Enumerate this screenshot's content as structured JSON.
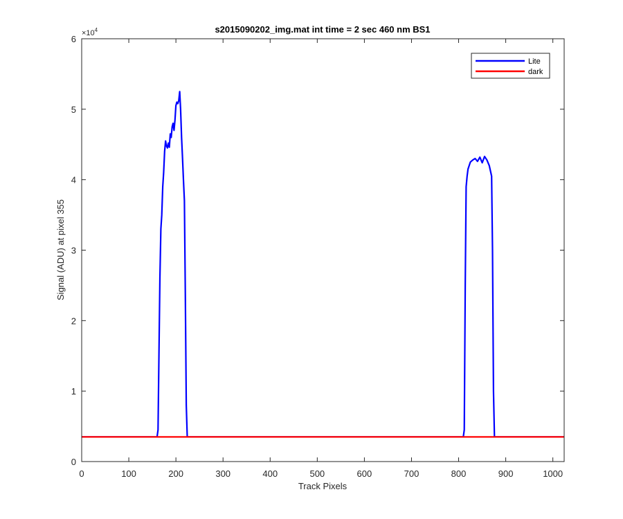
{
  "chart_data": {
    "type": "line",
    "title": "s2015090202_img.mat int time = 2 sec  460 nm BS1",
    "xlabel": "Track Pixels",
    "ylabel": "Signal (ADU) at pixel 355",
    "xlim": [
      0,
      1024
    ],
    "ylim": [
      0,
      60000
    ],
    "y_exponent_label": "×10",
    "y_exponent_power": "4",
    "x_ticks": [
      0,
      100,
      200,
      300,
      400,
      500,
      600,
      700,
      800,
      900,
      1000
    ],
    "x_tick_labels": [
      "0",
      "100",
      "200",
      "300",
      "400",
      "500",
      "600",
      "700",
      "800",
      "900",
      "1000"
    ],
    "y_ticks": [
      0,
      10000,
      20000,
      30000,
      40000,
      50000,
      60000
    ],
    "y_tick_labels": [
      "0",
      "1",
      "2",
      "3",
      "4",
      "5",
      "6"
    ],
    "grid": false,
    "legend_position": "top-right",
    "series": [
      {
        "name": "Lite",
        "color": "#0000ff",
        "x": [
          0,
          160,
          162,
          164,
          166,
          168,
          170,
          172,
          174,
          176,
          178,
          180,
          182,
          184,
          186,
          188,
          190,
          192,
          194,
          196,
          198,
          200,
          202,
          204,
          206,
          208,
          210,
          212,
          214,
          216,
          218,
          220,
          222,
          224,
          226,
          228,
          230,
          810,
          812,
          814,
          816,
          818,
          820,
          825,
          830,
          835,
          840,
          845,
          850,
          855,
          860,
          865,
          870,
          872,
          874,
          876,
          878,
          1024
        ],
        "values": [
          3500,
          3500,
          4500,
          15000,
          26000,
          33000,
          35000,
          39000,
          41000,
          44000,
          45500,
          44800,
          44500,
          45200,
          44600,
          46500,
          46000,
          47500,
          48000,
          47000,
          48500,
          50500,
          51000,
          50800,
          51200,
          52500,
          50000,
          46000,
          43000,
          40000,
          37000,
          24000,
          8000,
          3500,
          3500,
          3500,
          3500,
          3500,
          4500,
          25000,
          39000,
          40500,
          41500,
          42500,
          42800,
          43000,
          42600,
          43200,
          42400,
          43300,
          42800,
          42000,
          40500,
          30000,
          10000,
          3500,
          3500,
          3500
        ]
      },
      {
        "name": "dark",
        "color": "#ff0000",
        "x": [
          0,
          1024
        ],
        "values": [
          3500,
          3500
        ]
      }
    ]
  }
}
